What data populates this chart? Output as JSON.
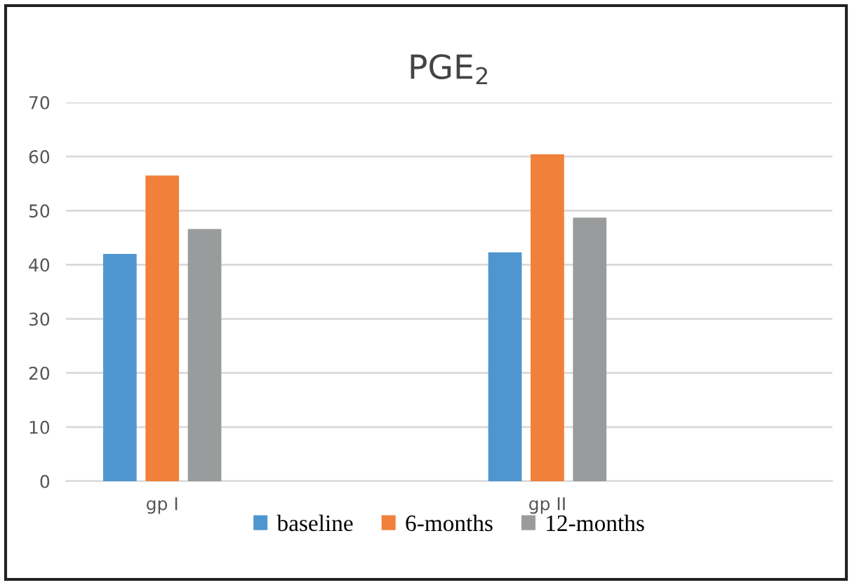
{
  "chart_data": {
    "type": "bar",
    "title": "PGE$_{2}$",
    "categories": [
      "gp I",
      "gp II"
    ],
    "series": [
      {
        "name": "baseline",
        "color": "#4f96d0",
        "values": [
          42.0,
          42.3
        ]
      },
      {
        "name": "6-months",
        "color": "#f0803a",
        "values": [
          56.5,
          60.4
        ]
      },
      {
        "name": "12-months",
        "color": "#999b9c",
        "values": [
          46.6,
          48.7
        ]
      }
    ],
    "ylim": [
      0,
      70
    ],
    "yticks": [
      0,
      10,
      20,
      30,
      40,
      50,
      60,
      70
    ],
    "grid": "y",
    "legend": "bottom"
  }
}
